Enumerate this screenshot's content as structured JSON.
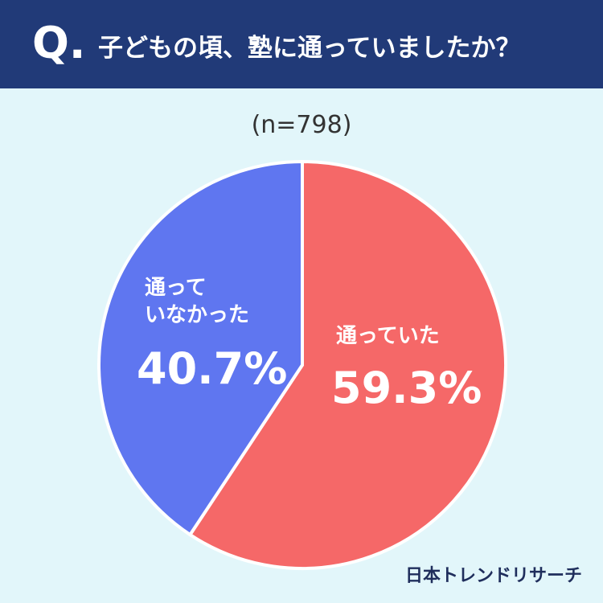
{
  "header": {
    "q": "Q.",
    "brand": "日本トレンドリサーチ"
  },
  "chart_data": {
    "type": "pie",
    "title": "子どもの頃、塾に通っていましたか？",
    "subtitle": "(n=798)",
    "categories": [
      "通っていた",
      "通って\nいなかった"
    ],
    "values": [
      59.3,
      40.7
    ],
    "value_labels": [
      "59.3%",
      "40.7%"
    ],
    "colors": [
      "#f56868",
      "#5f76f0"
    ]
  }
}
